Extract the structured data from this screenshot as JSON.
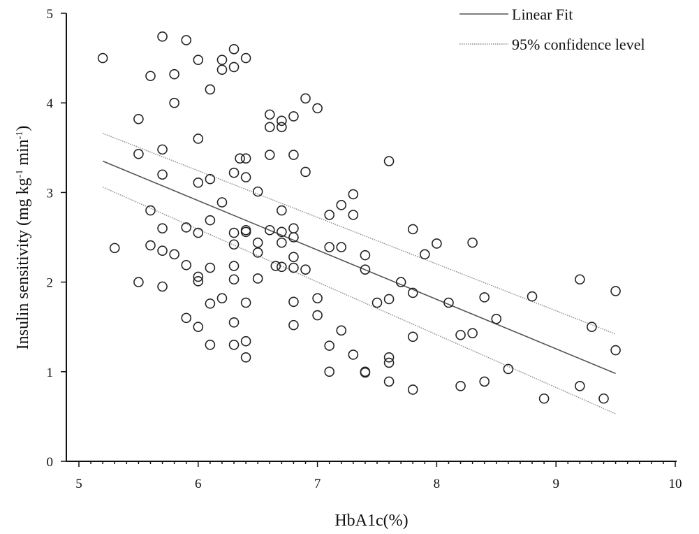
{
  "chart_data": {
    "type": "scatter",
    "xlabel": "HbA1c(%)",
    "ylabel": "Insulin sensitivity (mg kg",
    "ylabel_sup1": "-1",
    "ylabel_mid": "min",
    "ylabel_sup2": "-1",
    "ylabel_end": ")",
    "xlim": [
      5,
      10
    ],
    "ylim": [
      0,
      5
    ],
    "xticks": [
      "5",
      "6",
      "7",
      "8",
      "9",
      "10"
    ],
    "yticks": [
      "0",
      "1",
      "2",
      "3",
      "4",
      "5"
    ],
    "legend": {
      "position": "top-right",
      "entries": [
        "Linear Fit",
        "95% confidence level"
      ]
    },
    "fit": {
      "x": [
        5.2,
        9.5
      ],
      "y": [
        3.35,
        0.98
      ]
    },
    "ci_upper": {
      "x": [
        5.2,
        9.5
      ],
      "y": [
        3.66,
        1.42
      ]
    },
    "ci_lower": {
      "x": [
        5.2,
        9.5
      ],
      "y": [
        3.06,
        0.53
      ]
    },
    "points": [
      [
        5.2,
        4.5
      ],
      [
        5.3,
        2.38
      ],
      [
        5.5,
        3.82
      ],
      [
        5.5,
        3.43
      ],
      [
        5.5,
        2.0
      ],
      [
        5.6,
        4.3
      ],
      [
        5.6,
        2.8
      ],
      [
        5.6,
        2.41
      ],
      [
        5.7,
        4.74
      ],
      [
        5.7,
        3.48
      ],
      [
        5.7,
        3.2
      ],
      [
        5.7,
        2.6
      ],
      [
        5.7,
        2.35
      ],
      [
        5.7,
        1.95
      ],
      [
        5.8,
        4.32
      ],
      [
        5.8,
        4.0
      ],
      [
        5.8,
        2.31
      ],
      [
        5.9,
        4.7
      ],
      [
        5.9,
        2.61
      ],
      [
        5.9,
        2.19
      ],
      [
        5.9,
        1.6
      ],
      [
        6.0,
        4.48
      ],
      [
        6.0,
        3.6
      ],
      [
        6.0,
        3.11
      ],
      [
        6.0,
        2.55
      ],
      [
        6.0,
        2.06
      ],
      [
        6.0,
        2.01
      ],
      [
        6.0,
        1.5
      ],
      [
        6.1,
        4.15
      ],
      [
        6.1,
        3.15
      ],
      [
        6.1,
        2.69
      ],
      [
        6.1,
        2.16
      ],
      [
        6.1,
        1.76
      ],
      [
        6.1,
        1.3
      ],
      [
        6.2,
        4.48
      ],
      [
        6.2,
        4.37
      ],
      [
        6.2,
        2.89
      ],
      [
        6.2,
        1.82
      ],
      [
        6.3,
        4.6
      ],
      [
        6.3,
        4.4
      ],
      [
        6.3,
        3.22
      ],
      [
        6.3,
        2.55
      ],
      [
        6.3,
        2.42
      ],
      [
        6.3,
        2.18
      ],
      [
        6.3,
        2.03
      ],
      [
        6.3,
        1.55
      ],
      [
        6.3,
        1.3
      ],
      [
        6.35,
        3.38
      ],
      [
        6.4,
        4.5
      ],
      [
        6.4,
        3.38
      ],
      [
        6.4,
        3.17
      ],
      [
        6.4,
        2.58
      ],
      [
        6.4,
        2.56
      ],
      [
        6.4,
        1.77
      ],
      [
        6.4,
        1.34
      ],
      [
        6.4,
        1.16
      ],
      [
        6.5,
        3.01
      ],
      [
        6.5,
        2.44
      ],
      [
        6.5,
        2.33
      ],
      [
        6.5,
        2.04
      ],
      [
        6.6,
        3.87
      ],
      [
        6.6,
        3.73
      ],
      [
        6.6,
        3.42
      ],
      [
        6.6,
        2.58
      ],
      [
        6.65,
        2.18
      ],
      [
        6.7,
        3.8
      ],
      [
        6.7,
        3.73
      ],
      [
        6.7,
        2.8
      ],
      [
        6.7,
        2.56
      ],
      [
        6.7,
        2.44
      ],
      [
        6.7,
        2.17
      ],
      [
        6.8,
        3.85
      ],
      [
        6.8,
        3.42
      ],
      [
        6.8,
        2.6
      ],
      [
        6.8,
        2.5
      ],
      [
        6.8,
        2.28
      ],
      [
        6.8,
        2.16
      ],
      [
        6.8,
        1.78
      ],
      [
        6.8,
        1.52
      ],
      [
        6.9,
        4.05
      ],
      [
        6.9,
        3.23
      ],
      [
        6.9,
        2.14
      ],
      [
        7.0,
        3.94
      ],
      [
        7.0,
        1.82
      ],
      [
        7.0,
        1.63
      ],
      [
        7.1,
        2.75
      ],
      [
        7.1,
        2.39
      ],
      [
        7.1,
        1.29
      ],
      [
        7.1,
        1.0
      ],
      [
        7.2,
        2.86
      ],
      [
        7.2,
        2.39
      ],
      [
        7.2,
        1.46
      ],
      [
        7.3,
        2.98
      ],
      [
        7.3,
        2.75
      ],
      [
        7.3,
        1.19
      ],
      [
        7.4,
        2.3
      ],
      [
        7.4,
        2.14
      ],
      [
        7.4,
        1.0
      ],
      [
        7.4,
        0.99
      ],
      [
        7.5,
        1.77
      ],
      [
        7.6,
        3.35
      ],
      [
        7.6,
        1.81
      ],
      [
        7.6,
        1.16
      ],
      [
        7.6,
        1.1
      ],
      [
        7.6,
        0.89
      ],
      [
        7.7,
        2.0
      ],
      [
        7.8,
        2.59
      ],
      [
        7.8,
        1.88
      ],
      [
        7.8,
        1.39
      ],
      [
        7.8,
        0.8
      ],
      [
        7.9,
        2.31
      ],
      [
        8.0,
        2.43
      ],
      [
        8.1,
        1.77
      ],
      [
        8.2,
        1.41
      ],
      [
        8.2,
        0.84
      ],
      [
        8.3,
        2.44
      ],
      [
        8.3,
        1.43
      ],
      [
        8.4,
        1.83
      ],
      [
        8.4,
        0.89
      ],
      [
        8.5,
        1.59
      ],
      [
        8.6,
        1.03
      ],
      [
        8.8,
        1.84
      ],
      [
        8.9,
        0.7
      ],
      [
        9.2,
        2.03
      ],
      [
        9.2,
        0.84
      ],
      [
        9.3,
        1.5
      ],
      [
        9.4,
        0.7
      ],
      [
        9.5,
        1.9
      ],
      [
        9.5,
        1.24
      ]
    ]
  }
}
